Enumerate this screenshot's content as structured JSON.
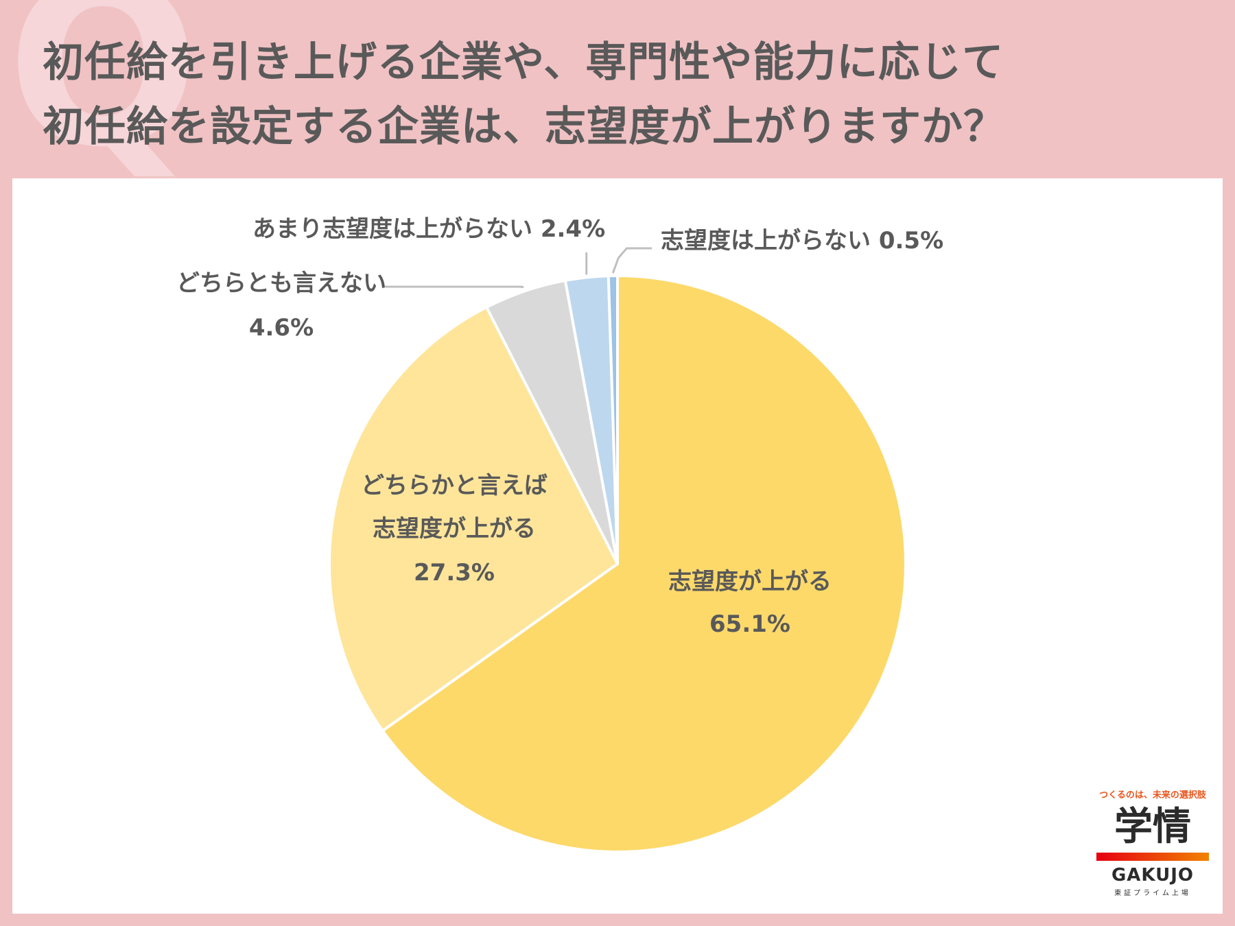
{
  "header": {
    "title_line1": "初任給を引き上げる企業や、専門性や能力に応じて",
    "title_line2": "初任給を設定する企業は、志望度が上がりますか？"
  },
  "chart_data": {
    "type": "pie",
    "title": "初任給を引き上げる企業や、専門性や能力に応じて初任給を設定する企業は、志望度が上がりますか？",
    "slices": [
      {
        "label": "志望度が上がる",
        "value": 65.1,
        "value_label": "65.1%",
        "color": "#fdd96a"
      },
      {
        "label": "どちらかと言えば志望度が上がる",
        "value": 27.3,
        "value_label": "27.3%",
        "color": "#fee59a"
      },
      {
        "label": "どちらとも言えない",
        "value": 4.6,
        "value_label": "4.6%",
        "color": "#d9d9d9"
      },
      {
        "label": "あまり志望度は上がらない",
        "value": 2.4,
        "value_label": "2.4%",
        "color": "#bdd7ee"
      },
      {
        "label": "志望度は上がらない",
        "value": 0.5,
        "value_label": "0.5%",
        "color": "#9dc3e6"
      }
    ],
    "leader_line_color": "#bfbfbf"
  },
  "labels": {
    "s0_line1": "志望度が上がる",
    "s0_line2": "65.1%",
    "s1_line1": "どちらかと言えば",
    "s1_line2": "志望度が上がる",
    "s1_line3": "27.3%",
    "s2_line1": "どちらとも言えない",
    "s2_line2": "4.6%",
    "s3_line1": "あまり志望度は上がらない 2.4%",
    "s4_line1": "志望度は上がらない 0.5%"
  },
  "logo": {
    "tagline": "つくるのは、未来の選択肢",
    "kanji": "学情",
    "latin": "GAKUJO",
    "sub": "東証プライム上場"
  },
  "decor": {
    "question_mark": "Q"
  }
}
